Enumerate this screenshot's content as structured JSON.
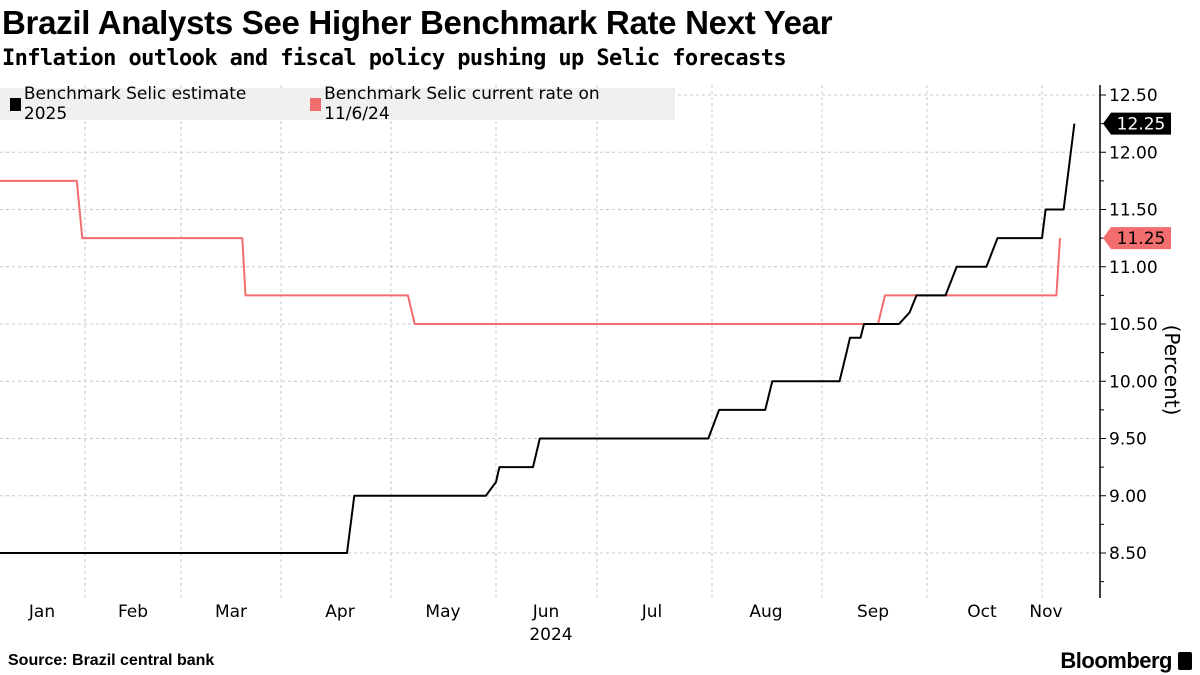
{
  "title": "Brazil Analysts See Higher Benchmark Rate Next Year",
  "subtitle": "Inflation outlook and fiscal policy pushing up Selic forecasts",
  "source": "Source: Brazil central bank",
  "brand": "Bloomberg",
  "chart_data": {
    "type": "line",
    "title": "Brazil Analysts See Higher Benchmark Rate Next Year",
    "ylabel": "(Percent)",
    "xlabel": "2024",
    "ylim": [
      8.25,
      12.6
    ],
    "xlim": [
      "2024-01-01",
      "2024-11-14"
    ],
    "y_axis_side": "right",
    "grid": true,
    "legend_placement": "top-left",
    "x_tick_labels": [
      "Jan",
      "Feb",
      "Mar",
      "Apr",
      "May",
      "Jun",
      "Jul",
      "Aug",
      "Sep",
      "Oct",
      "Nov"
    ],
    "x_year_label": "2024",
    "y_ticks": [
      8.5,
      9.0,
      9.5,
      10.0,
      10.5,
      11.0,
      11.5,
      12.0,
      12.5
    ],
    "y_tick_labels": [
      "8.50",
      "9.00",
      "9.50",
      "10.00",
      "10.50",
      "11.00",
      "11.50",
      "12.00",
      "12.50"
    ],
    "series": [
      {
        "name": "Benchmark Selic estimate 2025",
        "color": "#000000",
        "last_value_label": "12.25",
        "points": [
          [
            "2024-01-01",
            8.5
          ],
          [
            "2024-04-19",
            8.5
          ],
          [
            "2024-04-21",
            9.0
          ],
          [
            "2024-05-29",
            9.0
          ],
          [
            "2024-06-01",
            9.12
          ],
          [
            "2024-06-02",
            9.25
          ],
          [
            "2024-06-12",
            9.25
          ],
          [
            "2024-06-14",
            9.5
          ],
          [
            "2024-07-31",
            9.5
          ],
          [
            "2024-08-03",
            9.75
          ],
          [
            "2024-08-16",
            9.75
          ],
          [
            "2024-08-18",
            10.0
          ],
          [
            "2024-09-06",
            10.0
          ],
          [
            "2024-09-08",
            10.25
          ],
          [
            "2024-09-09",
            10.38
          ],
          [
            "2024-09-12",
            10.38
          ],
          [
            "2024-09-13",
            10.5
          ],
          [
            "2024-09-23",
            10.5
          ],
          [
            "2024-09-26",
            10.6
          ],
          [
            "2024-09-28",
            10.75
          ],
          [
            "2024-10-06",
            10.75
          ],
          [
            "2024-10-09",
            11.0
          ],
          [
            "2024-10-17",
            11.0
          ],
          [
            "2024-10-20",
            11.25
          ],
          [
            "2024-11-01",
            11.25
          ],
          [
            "2024-11-02",
            11.5
          ],
          [
            "2024-11-07",
            11.5
          ],
          [
            "2024-11-09",
            12.0
          ],
          [
            "2024-11-10",
            12.25
          ]
        ]
      },
      {
        "name": "Benchmark Selic current rate on 11/6/24",
        "color": "#f26d6d",
        "last_value_label": "11.25",
        "points": [
          [
            "2024-01-01",
            11.75
          ],
          [
            "2024-01-29",
            11.75
          ],
          [
            "2024-01-31",
            11.25
          ],
          [
            "2024-03-20",
            11.25
          ],
          [
            "2024-03-21",
            10.75
          ],
          [
            "2024-05-06",
            10.75
          ],
          [
            "2024-05-08",
            10.5
          ],
          [
            "2024-09-17",
            10.5
          ],
          [
            "2024-09-19",
            10.75
          ],
          [
            "2024-11-05",
            10.75
          ],
          [
            "2024-11-06",
            11.25
          ]
        ]
      }
    ]
  }
}
